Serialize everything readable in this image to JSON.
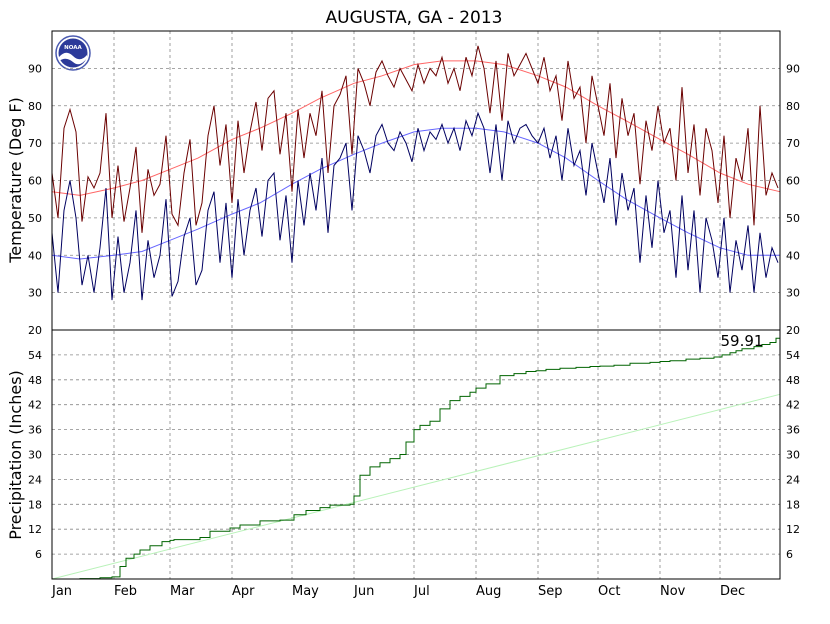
{
  "chart_data": [
    {
      "type": "line",
      "title": "AUGUSTA, GA - 2013",
      "ylabel": "Temperature (Deg F)",
      "ylim": [
        20,
        100
      ],
      "yticks": [
        20,
        30,
        40,
        50,
        60,
        70,
        80,
        90
      ],
      "x_unit": "day of year",
      "xlim": [
        1,
        365
      ],
      "grid": true,
      "series": [
        {
          "color": "#6b0000",
          "x": [
            1,
            4,
            7,
            10,
            13,
            16,
            19,
            22,
            25,
            28,
            31,
            34,
            37,
            40,
            43,
            46,
            49,
            52,
            55,
            58,
            61,
            64,
            67,
            70,
            73,
            76,
            79,
            82,
            85,
            88,
            91,
            94,
            97,
            100,
            103,
            106,
            109,
            112,
            115,
            118,
            121,
            124,
            127,
            130,
            133,
            136,
            139,
            142,
            145,
            148,
            151,
            154,
            157,
            160,
            163,
            166,
            169,
            172,
            175,
            178,
            181,
            184,
            187,
            190,
            193,
            196,
            199,
            202,
            205,
            208,
            211,
            214,
            217,
            220,
            223,
            226,
            229,
            232,
            235,
            238,
            241,
            244,
            247,
            250,
            253,
            256,
            259,
            262,
            265,
            268,
            271,
            274,
            277,
            280,
            283,
            286,
            289,
            292,
            295,
            298,
            301,
            304,
            307,
            310,
            313,
            316,
            319,
            322,
            325,
            328,
            331,
            334,
            337,
            340,
            343,
            346,
            349,
            352,
            355,
            358,
            361,
            364
          ],
          "y": [
            62,
            50,
            74,
            79,
            73,
            49,
            61,
            58,
            62,
            78,
            50,
            64,
            49,
            58,
            69,
            46,
            63,
            56,
            59,
            72,
            51,
            48,
            62,
            71,
            48,
            54,
            72,
            80,
            64,
            75,
            54,
            76,
            62,
            73,
            81,
            68,
            82,
            84,
            67,
            78,
            57,
            79,
            66,
            78,
            72,
            84,
            62,
            80,
            83,
            88,
            67,
            90,
            86,
            80,
            89,
            92,
            88,
            85,
            90,
            87,
            84,
            91,
            86,
            90,
            88,
            93,
            86,
            90,
            84,
            93,
            88,
            96,
            90,
            78,
            92,
            76,
            94,
            88,
            91,
            94,
            90,
            86,
            93,
            84,
            88,
            76,
            92,
            82,
            85,
            70,
            88,
            80,
            72,
            86,
            66,
            82,
            72,
            78,
            59,
            76,
            68,
            80,
            70,
            74,
            60,
            85,
            62,
            75,
            56,
            74,
            68,
            54,
            72,
            50,
            66,
            60,
            74,
            48,
            80,
            56,
            62,
            58
          ]
        },
        {
          "color": "#000060",
          "x": [
            1,
            4,
            7,
            10,
            13,
            16,
            19,
            22,
            25,
            28,
            31,
            34,
            37,
            40,
            43,
            46,
            49,
            52,
            55,
            58,
            61,
            64,
            67,
            70,
            73,
            76,
            79,
            82,
            85,
            88,
            91,
            94,
            97,
            100,
            103,
            106,
            109,
            112,
            115,
            118,
            121,
            124,
            127,
            130,
            133,
            136,
            139,
            142,
            145,
            148,
            151,
            154,
            157,
            160,
            163,
            166,
            169,
            172,
            175,
            178,
            181,
            184,
            187,
            190,
            193,
            196,
            199,
            202,
            205,
            208,
            211,
            214,
            217,
            220,
            223,
            226,
            229,
            232,
            235,
            238,
            241,
            244,
            247,
            250,
            253,
            256,
            259,
            262,
            265,
            268,
            271,
            274,
            277,
            280,
            283,
            286,
            289,
            292,
            295,
            298,
            301,
            304,
            307,
            310,
            313,
            316,
            319,
            322,
            325,
            328,
            331,
            334,
            337,
            340,
            343,
            346,
            349,
            352,
            355,
            358,
            361,
            364
          ],
          "y": [
            46,
            30,
            52,
            60,
            50,
            32,
            40,
            30,
            42,
            58,
            28,
            45,
            30,
            38,
            52,
            28,
            44,
            34,
            40,
            55,
            29,
            33,
            45,
            50,
            32,
            36,
            52,
            57,
            38,
            54,
            34,
            55,
            40,
            52,
            58,
            45,
            60,
            62,
            44,
            56,
            38,
            60,
            48,
            62,
            52,
            66,
            46,
            64,
            66,
            70,
            52,
            72,
            68,
            62,
            72,
            75,
            70,
            68,
            73,
            70,
            65,
            74,
            68,
            73,
            71,
            75,
            70,
            74,
            68,
            76,
            72,
            78,
            74,
            62,
            75,
            60,
            76,
            70,
            74,
            75,
            72,
            70,
            74,
            66,
            72,
            60,
            74,
            64,
            68,
            56,
            70,
            62,
            54,
            66,
            48,
            62,
            52,
            58,
            38,
            56,
            42,
            60,
            46,
            52,
            34,
            56,
            36,
            52,
            30,
            50,
            44,
            34,
            50,
            30,
            44,
            36,
            48,
            30,
            46,
            34,
            42,
            38
          ]
        },
        {
          "color": "#ff6666",
          "x": [
            1,
            15,
            32,
            46,
            60,
            74,
            91,
            105,
            121,
            135,
            152,
            166,
            182,
            196,
            213,
            227,
            244,
            258,
            274,
            288,
            305,
            319,
            335,
            349,
            365
          ],
          "y": [
            57,
            56,
            58,
            60,
            63,
            66,
            71,
            74,
            78,
            82,
            86,
            88,
            91,
            92,
            92,
            91,
            88,
            85,
            80,
            76,
            71,
            67,
            62,
            59,
            57
          ]
        },
        {
          "color": "#6666ff",
          "x": [
            1,
            15,
            32,
            46,
            60,
            74,
            91,
            105,
            121,
            135,
            152,
            166,
            182,
            196,
            213,
            227,
            244,
            258,
            274,
            288,
            305,
            319,
            335,
            349,
            365
          ],
          "y": [
            40,
            39,
            40,
            41,
            44,
            47,
            51,
            54,
            59,
            63,
            67,
            70,
            73,
            74,
            74,
            73,
            70,
            66,
            60,
            55,
            50,
            46,
            42,
            40,
            40
          ]
        }
      ]
    },
    {
      "type": "area",
      "ylabel": "Precipitation (Inches)",
      "ylim": [
        0,
        60
      ],
      "yticks": [
        6,
        12,
        18,
        24,
        30,
        36,
        42,
        48,
        54
      ],
      "x_unit": "day of year",
      "xlim": [
        1,
        365
      ],
      "grid": true,
      "annotation": "59.91",
      "series": [
        {
          "color": "#006400",
          "x": [
            1,
            15,
            25,
            31,
            35,
            38,
            42,
            45,
            50,
            56,
            60,
            62,
            75,
            80,
            90,
            95,
            105,
            115,
            122,
            128,
            135,
            140,
            150,
            152,
            155,
            160,
            165,
            170,
            175,
            178,
            182,
            185,
            190,
            195,
            200,
            205,
            210,
            213,
            218,
            225,
            232,
            238,
            243,
            248,
            255,
            263,
            270,
            275,
            282,
            290,
            300,
            305,
            310,
            318,
            325,
            332,
            336,
            340,
            343,
            346,
            352,
            356,
            360,
            363,
            365
          ],
          "y": [
            0,
            0.1,
            0.3,
            0.5,
            3,
            5,
            6,
            7,
            8,
            9,
            9.3,
            9.5,
            10,
            11.5,
            12.3,
            13,
            14,
            14.2,
            15.5,
            16.5,
            17.2,
            17.8,
            18,
            20,
            25,
            27,
            28,
            29,
            30,
            33,
            36,
            37,
            38,
            41,
            43,
            44,
            45,
            46,
            47,
            49,
            49.5,
            50,
            50.2,
            50.5,
            50.8,
            51,
            51.2,
            51.3,
            51.5,
            52,
            52.2,
            52.4,
            52.6,
            53,
            53.2,
            53.5,
            54,
            54.5,
            55,
            55.5,
            56,
            56.5,
            57,
            58,
            59.91
          ]
        },
        {
          "color": "#b9f2b9",
          "x": [
            1,
            365
          ],
          "y": [
            0,
            44.5
          ]
        }
      ]
    }
  ],
  "months": [
    "Jan",
    "Feb",
    "Mar",
    "Apr",
    "May",
    "Jun",
    "Jul",
    "Aug",
    "Sep",
    "Oct",
    "Nov",
    "Dec"
  ],
  "month_starts": [
    1,
    32,
    60,
    91,
    121,
    152,
    182,
    213,
    244,
    274,
    305,
    335
  ],
  "logo_text": "NOAA"
}
